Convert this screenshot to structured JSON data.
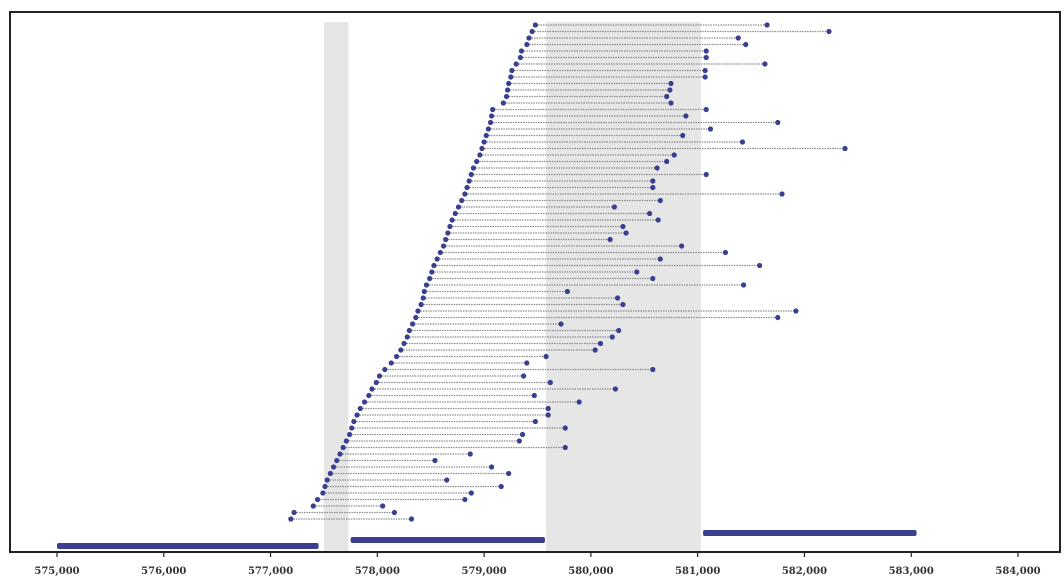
{
  "chart_data": {
    "type": "range-plot",
    "title": "",
    "xlabel": "",
    "ylabel": "",
    "xlim": [
      575000,
      584000
    ],
    "xticks": [
      575000,
      576000,
      577000,
      578000,
      579000,
      580000,
      581000,
      582000,
      583000,
      584000
    ],
    "xtick_labels": [
      "575,000",
      "576,000",
      "577,000",
      "578,000",
      "579,000",
      "580,000",
      "581,000",
      "582,000",
      "583,000",
      "584,000"
    ],
    "grid": false,
    "legend": "none",
    "colors": {
      "marker": "#3a3f8f",
      "line": "#8c8c8c",
      "shade": "#e6e6e6",
      "frame": "#222222"
    },
    "shaded_regions": [
      [
        577500,
        577730
      ],
      [
        579580,
        581030
      ]
    ],
    "genes": [
      {
        "start": 575000,
        "end": 577450,
        "lane": 0
      },
      {
        "start": 577750,
        "end": 579570,
        "lane": 1
      },
      {
        "start": 581050,
        "end": 583050,
        "lane": 2
      }
    ],
    "intervals": [
      [
        579480,
        581650
      ],
      [
        579450,
        582230
      ],
      [
        579420,
        581380
      ],
      [
        579400,
        581450
      ],
      [
        579350,
        581080
      ],
      [
        579340,
        581080
      ],
      [
        579300,
        581630
      ],
      [
        579260,
        581070
      ],
      [
        579250,
        581070
      ],
      [
        579230,
        580750
      ],
      [
        579220,
        580740
      ],
      [
        579210,
        580710
      ],
      [
        579180,
        580750
      ],
      [
        579080,
        581080
      ],
      [
        579070,
        580890
      ],
      [
        579060,
        581750
      ],
      [
        579040,
        581120
      ],
      [
        579020,
        580860
      ],
      [
        579000,
        581420
      ],
      [
        578980,
        582380
      ],
      [
        578960,
        580780
      ],
      [
        578930,
        580710
      ],
      [
        578900,
        580620
      ],
      [
        578880,
        581080
      ],
      [
        578860,
        580580
      ],
      [
        578840,
        580580
      ],
      [
        578820,
        581790
      ],
      [
        578790,
        580650
      ],
      [
        578760,
        580220
      ],
      [
        578730,
        580550
      ],
      [
        578700,
        580630
      ],
      [
        578680,
        580300
      ],
      [
        578660,
        580330
      ],
      [
        578640,
        580180
      ],
      [
        578620,
        580850
      ],
      [
        578590,
        581260
      ],
      [
        578560,
        580650
      ],
      [
        578530,
        581580
      ],
      [
        578510,
        580430
      ],
      [
        578490,
        580580
      ],
      [
        578460,
        581430
      ],
      [
        578440,
        579780
      ],
      [
        578430,
        580250
      ],
      [
        578410,
        580300
      ],
      [
        578380,
        581920
      ],
      [
        578360,
        581750
      ],
      [
        578330,
        579720
      ],
      [
        578300,
        580260
      ],
      [
        578280,
        580200
      ],
      [
        578250,
        580090
      ],
      [
        578220,
        580040
      ],
      [
        578180,
        579580
      ],
      [
        578130,
        579400
      ],
      [
        578070,
        580580
      ],
      [
        578020,
        579370
      ],
      [
        577990,
        579620
      ],
      [
        577950,
        580230
      ],
      [
        577920,
        579470
      ],
      [
        577880,
        579890
      ],
      [
        577840,
        579600
      ],
      [
        577810,
        579600
      ],
      [
        577780,
        579480
      ],
      [
        577760,
        579760
      ],
      [
        577740,
        579360
      ],
      [
        577710,
        579330
      ],
      [
        577680,
        579760
      ],
      [
        577650,
        578870
      ],
      [
        577620,
        578540
      ],
      [
        577590,
        579070
      ],
      [
        577560,
        579230
      ],
      [
        577530,
        578650
      ],
      [
        577510,
        579160
      ],
      [
        577490,
        578880
      ],
      [
        577440,
        578820
      ],
      [
        577400,
        578050
      ],
      [
        577220,
        578160
      ],
      [
        577190,
        578320
      ]
    ]
  }
}
